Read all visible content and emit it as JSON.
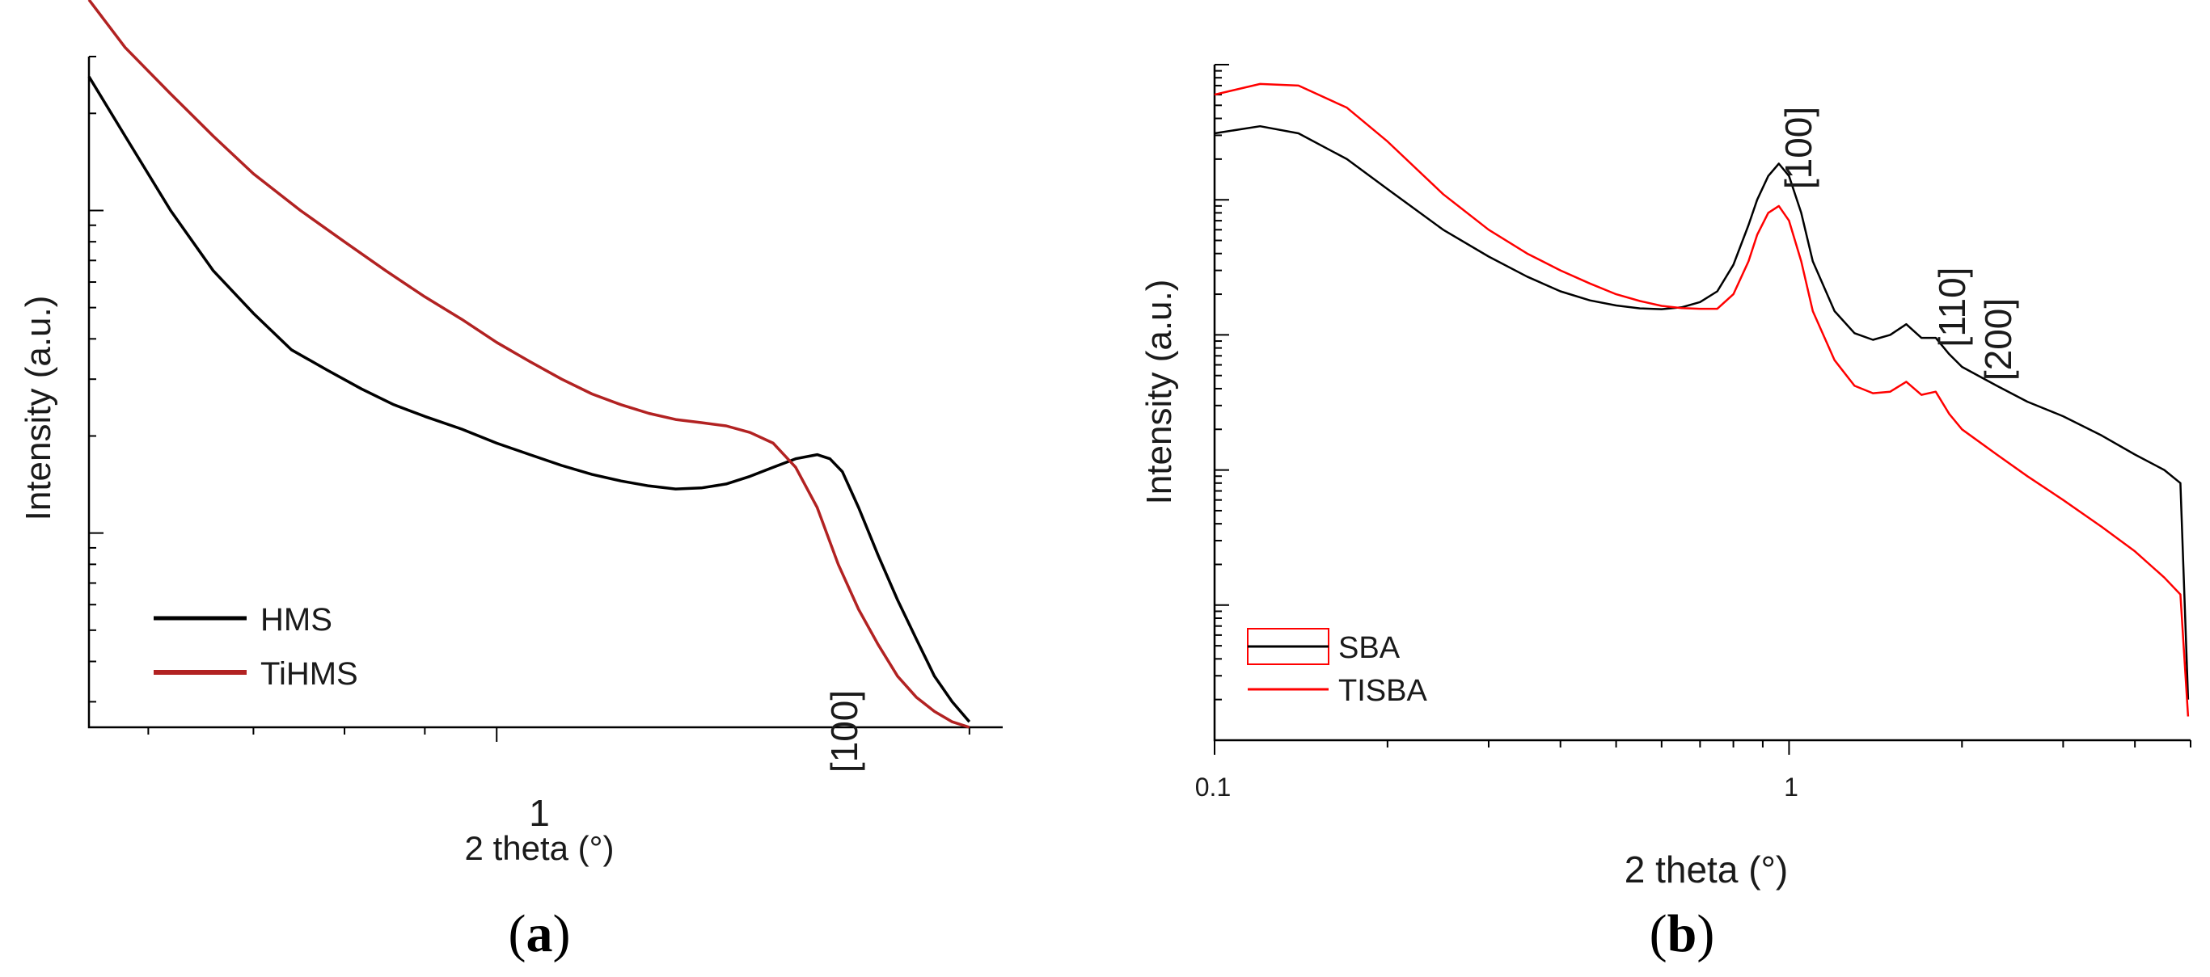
{
  "figure": {
    "panel_a_label_open": "(",
    "panel_a_label_letter": "a",
    "panel_a_label_close": ")",
    "panel_b_label_open": "(",
    "panel_b_label_letter": "b",
    "panel_b_label_close": ")"
  },
  "chart_data": [
    {
      "type": "line",
      "panel": "a",
      "title": "",
      "xlabel": "2 theta (°)",
      "ylabel": "Intensity (a.u.)",
      "xscale": "log",
      "yscale": "log",
      "xlim": [
        0.55,
        2.1
      ],
      "ylim": [
        0.025,
        3.0
      ],
      "x_ticks": [
        "1"
      ],
      "annotations": [
        {
          "text": "[100]",
          "x": 1.56
        }
      ],
      "legend": {
        "position": "bottom-left",
        "entries": [
          "HMS",
          "TiHMS"
        ]
      },
      "series": [
        {
          "name": "HMS",
          "color": "#000000",
          "x": [
            0.55,
            0.58,
            0.62,
            0.66,
            0.7,
            0.74,
            0.78,
            0.82,
            0.86,
            0.9,
            0.95,
            1.0,
            1.05,
            1.1,
            1.15,
            1.2,
            1.25,
            1.3,
            1.35,
            1.4,
            1.45,
            1.5,
            1.55,
            1.6,
            1.63,
            1.66,
            1.7,
            1.75,
            1.8,
            1.85,
            1.9,
            1.95,
            2.0
          ],
          "values": [
            2.6,
            1.7,
            1.0,
            0.65,
            0.48,
            0.37,
            0.32,
            0.28,
            0.25,
            0.23,
            0.21,
            0.19,
            0.175,
            0.162,
            0.152,
            0.145,
            0.14,
            0.137,
            0.138,
            0.142,
            0.15,
            0.16,
            0.17,
            0.175,
            0.17,
            0.155,
            0.12,
            0.085,
            0.062,
            0.047,
            0.036,
            0.03,
            0.026
          ]
        },
        {
          "name": "TiHMS",
          "color": "#b22222",
          "x": [
            0.55,
            0.58,
            0.62,
            0.66,
            0.7,
            0.75,
            0.8,
            0.85,
            0.9,
            0.95,
            1.0,
            1.05,
            1.1,
            1.15,
            1.2,
            1.25,
            1.3,
            1.35,
            1.4,
            1.45,
            1.5,
            1.55,
            1.6,
            1.65,
            1.7,
            1.75,
            1.8,
            1.85,
            1.9,
            1.95,
            2.0
          ],
          "values": [
            4.5,
            3.2,
            2.3,
            1.7,
            1.3,
            1.0,
            0.8,
            0.65,
            0.54,
            0.46,
            0.39,
            0.34,
            0.3,
            0.27,
            0.25,
            0.235,
            0.225,
            0.22,
            0.215,
            0.205,
            0.19,
            0.16,
            0.12,
            0.08,
            0.058,
            0.045,
            0.036,
            0.031,
            0.028,
            0.026,
            0.025
          ]
        }
      ]
    },
    {
      "type": "line",
      "panel": "b",
      "title": "",
      "xlabel": "2 theta (°)",
      "ylabel": "Intensity (a.u.)",
      "xscale": "log",
      "yscale": "log",
      "xlim": [
        0.1,
        5.0
      ],
      "ylim": [
        1,
        100000
      ],
      "x_ticks": [
        "0.1",
        "1"
      ],
      "annotations": [
        {
          "text": "[100]",
          "x": 0.96
        },
        {
          "text": "[110]",
          "x": 1.6
        },
        {
          "text": "[200]",
          "x": 1.85
        }
      ],
      "legend": {
        "position": "bottom-left",
        "entries": [
          "SBA",
          "TISBA"
        ]
      },
      "series": [
        {
          "name": "SBA",
          "color": "#000000",
          "x": [
            0.1,
            0.12,
            0.14,
            0.17,
            0.2,
            0.25,
            0.3,
            0.35,
            0.4,
            0.45,
            0.5,
            0.55,
            0.6,
            0.65,
            0.7,
            0.75,
            0.8,
            0.85,
            0.88,
            0.92,
            0.96,
            1.0,
            1.05,
            1.1,
            1.2,
            1.3,
            1.4,
            1.5,
            1.6,
            1.7,
            1.8,
            1.9,
            2.0,
            2.3,
            2.6,
            3.0,
            3.5,
            4.0,
            4.5,
            4.8,
            4.95
          ],
          "values": [
            31000,
            35000,
            31000,
            20000,
            12000,
            6000,
            3800,
            2700,
            2100,
            1800,
            1650,
            1570,
            1550,
            1600,
            1750,
            2100,
            3300,
            6500,
            10000,
            15000,
            18500,
            15000,
            8000,
            3500,
            1500,
            1030,
            920,
            1000,
            1200,
            950,
            950,
            720,
            580,
            420,
            320,
            250,
            180,
            130,
            100,
            80,
            2
          ]
        },
        {
          "name": "TISBA",
          "color": "#ff0000",
          "x": [
            0.1,
            0.12,
            0.14,
            0.17,
            0.2,
            0.25,
            0.3,
            0.35,
            0.4,
            0.45,
            0.5,
            0.55,
            0.6,
            0.65,
            0.7,
            0.75,
            0.8,
            0.85,
            0.88,
            0.92,
            0.96,
            1.0,
            1.05,
            1.1,
            1.2,
            1.3,
            1.4,
            1.5,
            1.6,
            1.7,
            1.8,
            1.9,
            2.0,
            2.3,
            2.6,
            3.0,
            3.5,
            4.0,
            4.5,
            4.8,
            4.95
          ],
          "values": [
            60000,
            72000,
            70000,
            48000,
            27000,
            11000,
            6000,
            4000,
            3000,
            2400,
            2000,
            1780,
            1640,
            1580,
            1560,
            1560,
            2000,
            3500,
            5500,
            8000,
            9000,
            7000,
            3500,
            1500,
            650,
            420,
            370,
            380,
            450,
            360,
            380,
            260,
            200,
            130,
            90,
            60,
            38,
            25,
            16,
            12,
            1.5
          ]
        }
      ]
    }
  ]
}
